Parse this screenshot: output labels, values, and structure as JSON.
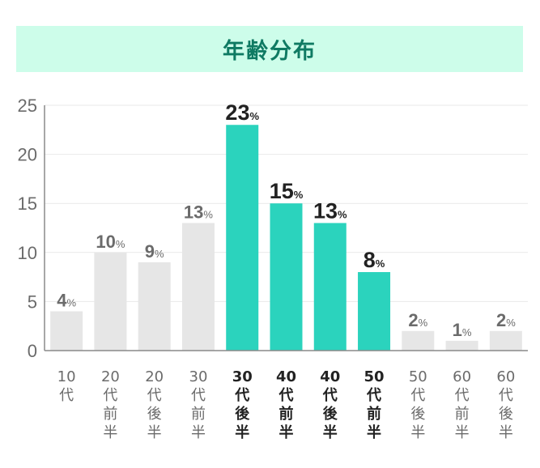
{
  "header": {
    "title": "年齢分布"
  },
  "colors": {
    "highlight": "#2bd3bd",
    "normal": "#e6e6e6",
    "grid": "#e9e9e9",
    "axis": "#8a8a8a",
    "label_highlight": "#222222",
    "label_normal": "#6b6b6b"
  },
  "chart_data": {
    "type": "bar",
    "title": "年齢分布",
    "xlabel": "",
    "ylabel": "",
    "ylim": [
      0,
      25
    ],
    "yticks": [
      0,
      5,
      10,
      15,
      20,
      25
    ],
    "grid": true,
    "unit": "%",
    "categories": [
      "10代",
      "20代前半",
      "20代後半",
      "30代前半",
      "30代後半",
      "40代前半",
      "40代後半",
      "50代前半",
      "50代後半",
      "60代前半",
      "60代後半"
    ],
    "values": [
      4,
      10,
      9,
      13,
      23,
      15,
      13,
      8,
      2,
      1,
      2
    ],
    "highlighted": [
      false,
      false,
      false,
      false,
      true,
      true,
      true,
      true,
      false,
      false,
      false
    ]
  }
}
